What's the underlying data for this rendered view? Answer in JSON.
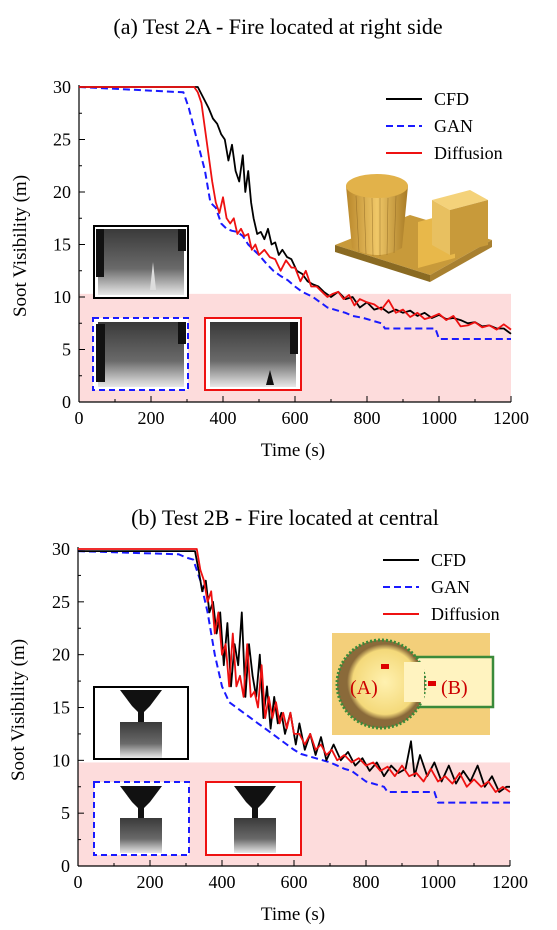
{
  "colors": {
    "cfd": "#000000",
    "gan": "#1a1aff",
    "diffusion": "#ee1111",
    "shaded_band": "#fddcdc",
    "building": "#e8b84a"
  },
  "chart_data": [
    {
      "type": "line",
      "title": "(a) Test 2A - Fire located at right side",
      "xlabel": "Time (s)",
      "ylabel": "Soot Visibility (m)",
      "xlim": [
        0,
        1200
      ],
      "ylim": [
        0,
        30
      ],
      "xticks": [
        0,
        200,
        400,
        600,
        800,
        1000,
        1200
      ],
      "yticks": [
        0,
        5,
        10,
        15,
        20,
        25,
        30
      ],
      "grid": false,
      "legend": "top-right",
      "shaded_band": [
        0,
        10.3
      ],
      "insets": [
        "black-border-image",
        "blue-dashed-border-image",
        "red-border-image",
        "3d-building-model"
      ],
      "series": [
        {
          "name": "CFD",
          "style": "solid",
          "x": [
            0,
            330,
            345,
            360,
            372,
            384,
            395,
            405,
            415,
            425,
            435,
            445,
            455,
            462,
            470,
            478,
            485,
            495,
            505,
            515,
            525,
            535,
            545,
            555,
            565,
            578,
            590,
            605,
            620,
            635,
            650,
            665,
            680,
            700,
            720,
            740,
            760,
            780,
            800,
            820,
            840,
            860,
            880,
            900,
            920,
            940,
            960,
            980,
            1000,
            1020,
            1040,
            1060,
            1080,
            1100,
            1120,
            1140,
            1160,
            1180,
            1200
          ],
          "values": [
            30,
            30,
            29,
            28,
            27,
            26.5,
            25.5,
            25,
            23,
            24.5,
            22,
            21,
            23.5,
            20,
            22,
            19,
            17.5,
            16,
            16.2,
            15.5,
            16.5,
            15,
            15.2,
            14,
            14.5,
            13.8,
            13.6,
            12.5,
            12.2,
            11.5,
            11.2,
            11,
            10.5,
            10,
            10.5,
            9.8,
            10,
            9,
            9.5,
            8.8,
            9,
            8.5,
            8.8,
            8.5,
            8.7,
            8.2,
            8.5,
            8,
            8.3,
            7.9,
            8,
            7.8,
            7.5,
            7.6,
            7.2,
            7.3,
            7,
            7,
            6.5
          ]
        },
        {
          "name": "GAN",
          "style": "dashed",
          "x": [
            0,
            290,
            305,
            320,
            335,
            350,
            365,
            380,
            395,
            410,
            425,
            440,
            455,
            470,
            485,
            500,
            520,
            540,
            560,
            580,
            600,
            620,
            650,
            690,
            740,
            760,
            790,
            840,
            850,
            990,
            1000,
            1200
          ],
          "values": [
            30,
            29.5,
            28,
            26,
            24,
            22,
            19,
            18.5,
            17,
            16.5,
            16.3,
            16.2,
            15.8,
            15,
            14.5,
            14,
            13.2,
            12.5,
            12,
            11.6,
            11,
            10.5,
            10,
            9,
            8.5,
            8.2,
            8,
            7.5,
            7,
            7,
            6,
            6
          ]
        },
        {
          "name": "Diffusion",
          "style": "solid",
          "x": [
            0,
            320,
            330,
            340,
            350,
            360,
            370,
            380,
            390,
            400,
            410,
            420,
            430,
            440,
            450,
            460,
            470,
            480,
            490,
            500,
            515,
            530,
            545,
            560,
            575,
            590,
            600,
            615,
            630,
            645,
            660,
            675,
            690,
            705,
            720,
            735,
            750,
            765,
            780,
            800,
            820,
            840,
            860,
            880,
            900,
            920,
            940,
            960,
            980,
            1000,
            1020,
            1040,
            1060,
            1080,
            1100,
            1120,
            1140,
            1160,
            1180,
            1200
          ],
          "values": [
            30,
            30,
            29.5,
            28.5,
            26,
            23.5,
            21,
            19,
            18,
            19.5,
            17.5,
            17,
            17.5,
            16,
            16.5,
            15.8,
            16,
            14.5,
            15,
            14,
            14.5,
            13.8,
            13.6,
            12.5,
            13.5,
            12.8,
            12.8,
            11.5,
            12.5,
            11,
            11,
            10.5,
            10,
            10.3,
            10.5,
            9.8,
            10.2,
            9.2,
            9.8,
            9.5,
            9.3,
            8.8,
            9.7,
            8.5,
            8.8,
            8.1,
            8.5,
            7.9,
            8.1,
            8.4,
            7.8,
            8.2,
            7.2,
            7.3,
            7.6,
            7.1,
            7.3,
            6.9,
            7.4,
            6.9
          ]
        }
      ]
    },
    {
      "type": "line",
      "title": "(b) Test 2B - Fire located at central",
      "xlabel": "Time (s)",
      "ylabel": "Soot Visibility (m)",
      "xlim": [
        0,
        1200
      ],
      "ylim": [
        0,
        30
      ],
      "xticks": [
        0,
        200,
        400,
        600,
        800,
        1000,
        1200
      ],
      "yticks": [
        0,
        5,
        10,
        15,
        20,
        25,
        30
      ],
      "grid": false,
      "legend": "top-right",
      "shaded_band": [
        0,
        9.8
      ],
      "insets": [
        "black-border-image",
        "blue-dashed-border-image",
        "red-border-image",
        "floor-plan"
      ],
      "inset_labels": [
        "(A)",
        "(B)"
      ],
      "series": [
        {
          "name": "CFD",
          "style": "solid",
          "x": [
            0,
            325,
            335,
            345,
            355,
            365,
            375,
            385,
            395,
            405,
            415,
            425,
            435,
            445,
            455,
            465,
            475,
            485,
            495,
            505,
            515,
            525,
            535,
            545,
            555,
            565,
            575,
            590,
            605,
            615,
            630,
            645,
            660,
            675,
            690,
            710,
            730,
            750,
            770,
            790,
            810,
            830,
            850,
            870,
            890,
            910,
            925,
            935,
            950,
            970,
            990,
            1010,
            1030,
            1050,
            1070,
            1090,
            1110,
            1130,
            1150,
            1170,
            1190,
            1200
          ],
          "values": [
            29.8,
            29.8,
            28,
            26,
            27,
            24,
            25,
            22,
            24,
            19,
            23,
            17,
            21,
            19,
            24,
            16,
            21,
            18,
            16,
            20,
            14,
            17,
            13,
            16,
            13.5,
            14.5,
            12.5,
            14.5,
            11.5,
            13.5,
            11,
            12.5,
            10.5,
            12.2,
            10,
            11.5,
            10,
            10.8,
            9.5,
            10.2,
            9,
            9.8,
            8.5,
            9.5,
            8.8,
            9.2,
            11.8,
            8.5,
            10.5,
            8.5,
            9.8,
            8,
            9.5,
            7.8,
            9,
            8,
            9.5,
            7.5,
            8.5,
            7,
            7.5,
            7.5
          ]
        },
        {
          "name": "GAN",
          "style": "dashed",
          "x": [
            0,
            280,
            300,
            320,
            340,
            360,
            380,
            400,
            420,
            440,
            460,
            480,
            500,
            520,
            540,
            560,
            580,
            600,
            620,
            640,
            660,
            680,
            700,
            720,
            740,
            760,
            780,
            800,
            850,
            860,
            990,
            1000,
            1200
          ],
          "values": [
            29.8,
            29.5,
            29.2,
            29,
            27,
            24,
            20,
            17,
            15.5,
            15,
            14.5,
            14,
            13.5,
            13,
            12.5,
            12,
            11.5,
            11,
            10.6,
            10.4,
            10.2,
            10,
            9.8,
            9.5,
            9.2,
            9,
            8.5,
            8,
            7.5,
            7,
            7,
            6,
            6
          ]
        },
        {
          "name": "Diffusion",
          "style": "solid",
          "x": [
            0,
            330,
            340,
            350,
            360,
            370,
            380,
            390,
            400,
            410,
            420,
            430,
            440,
            450,
            460,
            470,
            480,
            490,
            500,
            510,
            520,
            530,
            540,
            550,
            560,
            570,
            580,
            590,
            600,
            615,
            630,
            645,
            660,
            675,
            690,
            705,
            720,
            740,
            760,
            780,
            800,
            820,
            840,
            860,
            880,
            900,
            920,
            940,
            960,
            980,
            1000,
            1020,
            1040,
            1060,
            1080,
            1100,
            1120,
            1140,
            1160,
            1180,
            1200
          ],
          "values": [
            30,
            30,
            28,
            27,
            25,
            26,
            22,
            24,
            20,
            21,
            17,
            22,
            17,
            18,
            16,
            21,
            16,
            16.5,
            15,
            19,
            14,
            16,
            14,
            15.5,
            13.5,
            14.5,
            13,
            14.5,
            12.5,
            12.5,
            11.5,
            12.5,
            11,
            11.5,
            10.5,
            11,
            10,
            10.5,
            9.8,
            10.2,
            9.5,
            9.8,
            9,
            9.4,
            8.5,
            9.5,
            8.5,
            8.8,
            8,
            9.2,
            8,
            8.5,
            7.8,
            8.8,
            7.5,
            8.2,
            7.5,
            8,
            7,
            7.5,
            7
          ]
        }
      ]
    }
  ]
}
